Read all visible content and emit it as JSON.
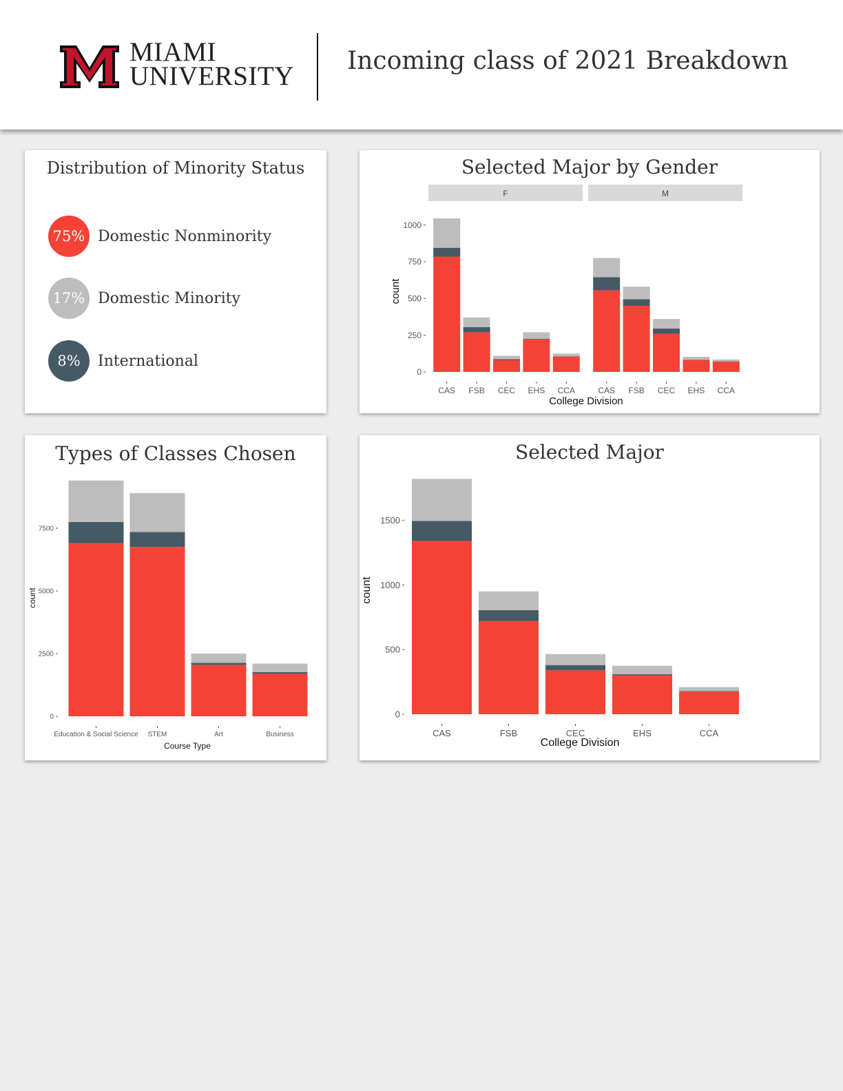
{
  "header": {
    "logo_line1": "MIAMI",
    "logo_line2": "UNIVERSITY",
    "title": "Incoming class of 2021 Breakdown",
    "brand_color": "#c3142d"
  },
  "colors": {
    "nonminority": "#f44336",
    "minority": "#bdbdbd",
    "international": "#455a64"
  },
  "minority_status": {
    "title": "Distribution of Minority Status",
    "items": [
      {
        "pct": "75%",
        "label": "Domestic Nonminority",
        "value": 75,
        "color": "#f44336"
      },
      {
        "pct": "17%",
        "label": "Domestic Minority",
        "value": 17,
        "color": "#bdbdbd"
      },
      {
        "pct": "8%",
        "label": "International",
        "value": 8,
        "color": "#455a64"
      }
    ]
  },
  "chart_data": [
    {
      "id": "gender",
      "type": "bar",
      "stacked": true,
      "title": "Selected Major by Gender",
      "xlabel": "College Division",
      "ylabel": "count",
      "ylim": [
        0,
        1050
      ],
      "yticks": [
        0,
        250,
        500,
        750,
        1000
      ],
      "panels": [
        "F",
        "M"
      ],
      "categories": [
        "CAS",
        "FSB",
        "CEC",
        "EHS",
        "CCA"
      ],
      "series": [
        {
          "stack": "nonminority",
          "color": "#f44336",
          "F": [
            785,
            270,
            80,
            222,
            105
          ],
          "M": [
            555,
            450,
            260,
            80,
            70
          ]
        },
        {
          "stack": "international",
          "color": "#455a64",
          "F": [
            60,
            35,
            7,
            3,
            2
          ],
          "M": [
            90,
            45,
            35,
            3,
            2
          ]
        },
        {
          "stack": "minority",
          "color": "#bdbdbd",
          "F": [
            200,
            65,
            23,
            45,
            18
          ],
          "M": [
            130,
            85,
            65,
            20,
            13
          ]
        }
      ]
    },
    {
      "id": "classes",
      "type": "bar",
      "stacked": true,
      "title": "Types of Classes Chosen",
      "xlabel": "Course Type",
      "ylabel": "count",
      "ylim": [
        0,
        9500
      ],
      "yticks": [
        0,
        2500,
        5000,
        7500
      ],
      "categories": [
        "Education & Social Science",
        "STEM",
        "Art",
        "Business"
      ],
      "series": [
        {
          "stack": "nonminority",
          "color": "#f44336",
          "values": [
            6900,
            6750,
            2050,
            1700
          ]
        },
        {
          "stack": "international",
          "color": "#455a64",
          "values": [
            850,
            600,
            80,
            60
          ]
        },
        {
          "stack": "minority",
          "color": "#bdbdbd",
          "values": [
            1650,
            1550,
            370,
            340
          ]
        }
      ]
    },
    {
      "id": "major",
      "type": "bar",
      "stacked": true,
      "title": "Selected Major",
      "xlabel": "College Division",
      "ylabel": "count",
      "ylim": [
        0,
        1880
      ],
      "yticks": [
        0,
        500,
        1000,
        1500
      ],
      "categories": [
        "CAS",
        "FSB",
        "CEC",
        "EHS",
        "CCA"
      ],
      "series": [
        {
          "stack": "nonminority",
          "color": "#f44336",
          "values": [
            1340,
            720,
            340,
            300,
            175
          ]
        },
        {
          "stack": "international",
          "color": "#455a64",
          "values": [
            155,
            85,
            40,
            10,
            4
          ]
        },
        {
          "stack": "minority",
          "color": "#bdbdbd",
          "values": [
            325,
            145,
            85,
            65,
            31
          ]
        }
      ]
    }
  ]
}
